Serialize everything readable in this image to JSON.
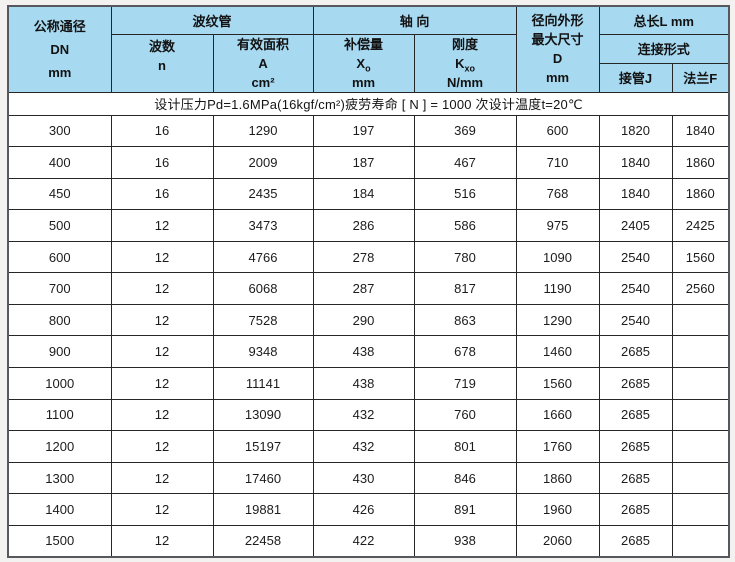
{
  "table": {
    "header": {
      "dn_lines": [
        "公称通径",
        "DN",
        "mm"
      ],
      "bellows_group": "波纹管",
      "waves_lines": [
        "波数",
        "n"
      ],
      "area": {
        "title": "有效面积",
        "symbol": "A",
        "unit": "cm²"
      },
      "axial_group": "轴 向",
      "compensation": {
        "title": "补偿量",
        "symbol": "X",
        "symbol_sub": "o",
        "unit": "mm"
      },
      "stiffness": {
        "title": "刚度",
        "symbol": "K",
        "symbol_sub": "xo",
        "unit": "N/mm"
      },
      "radial_lines": [
        "径向外形",
        "最大尺寸",
        "D",
        "mm"
      ],
      "total_length_group": "总长L mm",
      "connection_type": "连接形式",
      "pipe_label": "接管J",
      "flange_label": "法兰F"
    },
    "design_note": "设计压力Pd=1.6MPa(16kgf/cm²)疲劳寿命 [ N ] = 1000 次设计温度t=20℃",
    "row_keys": [
      "dn",
      "n",
      "a",
      "x0",
      "kx0",
      "d",
      "j",
      "f"
    ],
    "rows": [
      {
        "dn": "300",
        "n": "16",
        "a": "1290",
        "x0": "197",
        "kx0": "369",
        "d": "600",
        "j": "1820",
        "f": "1840"
      },
      {
        "dn": "400",
        "n": "16",
        "a": "2009",
        "x0": "187",
        "kx0": "467",
        "d": "710",
        "j": "1840",
        "f": "1860"
      },
      {
        "dn": "450",
        "n": "16",
        "a": "2435",
        "x0": "184",
        "kx0": "516",
        "d": "768",
        "j": "1840",
        "f": "1860"
      },
      {
        "dn": "500",
        "n": "12",
        "a": "3473",
        "x0": "286",
        "kx0": "586",
        "d": "975",
        "j": "2405",
        "f": "2425"
      },
      {
        "dn": "600",
        "n": "12",
        "a": "4766",
        "x0": "278",
        "kx0": "780",
        "d": "1090",
        "j": "2540",
        "f": "1560"
      },
      {
        "dn": "700",
        "n": "12",
        "a": "6068",
        "x0": "287",
        "kx0": "817",
        "d": "1190",
        "j": "2540",
        "f": "2560"
      },
      {
        "dn": "800",
        "n": "12",
        "a": "7528",
        "x0": "290",
        "kx0": "863",
        "d": "1290",
        "j": "2540",
        "f": ""
      },
      {
        "dn": "900",
        "n": "12",
        "a": "9348",
        "x0": "438",
        "kx0": "678",
        "d": "1460",
        "j": "2685",
        "f": ""
      },
      {
        "dn": "1000",
        "n": "12",
        "a": "11141",
        "x0": "438",
        "kx0": "719",
        "d": "1560",
        "j": "2685",
        "f": ""
      },
      {
        "dn": "1100",
        "n": "12",
        "a": "13090",
        "x0": "432",
        "kx0": "760",
        "d": "1660",
        "j": "2685",
        "f": ""
      },
      {
        "dn": "1200",
        "n": "12",
        "a": "15197",
        "x0": "432",
        "kx0": "801",
        "d": "1760",
        "j": "2685",
        "f": ""
      },
      {
        "dn": "1300",
        "n": "12",
        "a": "17460",
        "x0": "430",
        "kx0": "846",
        "d": "1860",
        "j": "2685",
        "f": ""
      },
      {
        "dn": "1400",
        "n": "12",
        "a": "19881",
        "x0": "426",
        "kx0": "891",
        "d": "1960",
        "j": "2685",
        "f": ""
      },
      {
        "dn": "1500",
        "n": "12",
        "a": "22458",
        "x0": "422",
        "kx0": "938",
        "d": "2060",
        "j": "2685",
        "f": ""
      }
    ]
  },
  "colors": {
    "header_bg": "#a7d9f1",
    "inner_border": "#262626",
    "outer_border": "#55585c",
    "page_bg": "#f3f2f0",
    "cell_bg": "#ffffff",
    "text": "#141414"
  }
}
